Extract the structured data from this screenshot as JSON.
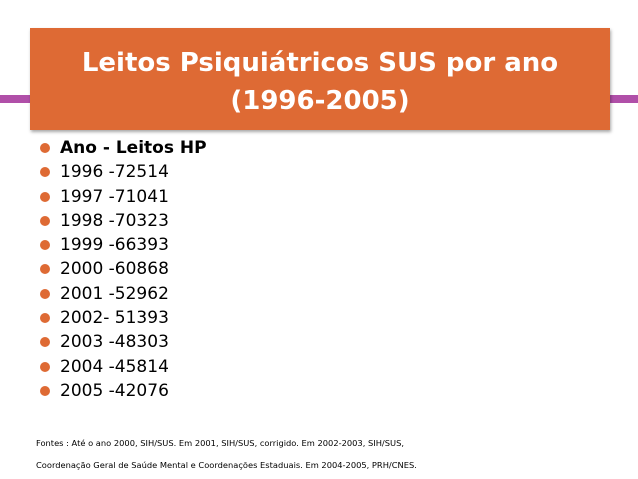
{
  "header": {
    "title_lines": [
      "Leitos Psiquiátricos SUS por ano",
      "(1996-2005)"
    ]
  },
  "list": {
    "items": [
      "Ano - Leitos HP",
      "1996 -72514",
      "1997 -71041",
      "1998 -70323",
      "1999 -66393",
      "2000 -60868",
      "2001 -52962",
      "2002- 51393",
      "2003 -48303",
      "2004 -45814",
      "2005 -42076"
    ]
  },
  "footnote": {
    "lines": [
      "Fontes : Até o ano 2000, SIH/SUS. Em 2001, SIH/SUS, corrigido. Em 2002-2003, SIH/SUS,",
      "Coordenação Geral de Saúde Mental e Coordenações Estaduais. Em 2004-2005, PRH/CNES."
    ]
  }
}
